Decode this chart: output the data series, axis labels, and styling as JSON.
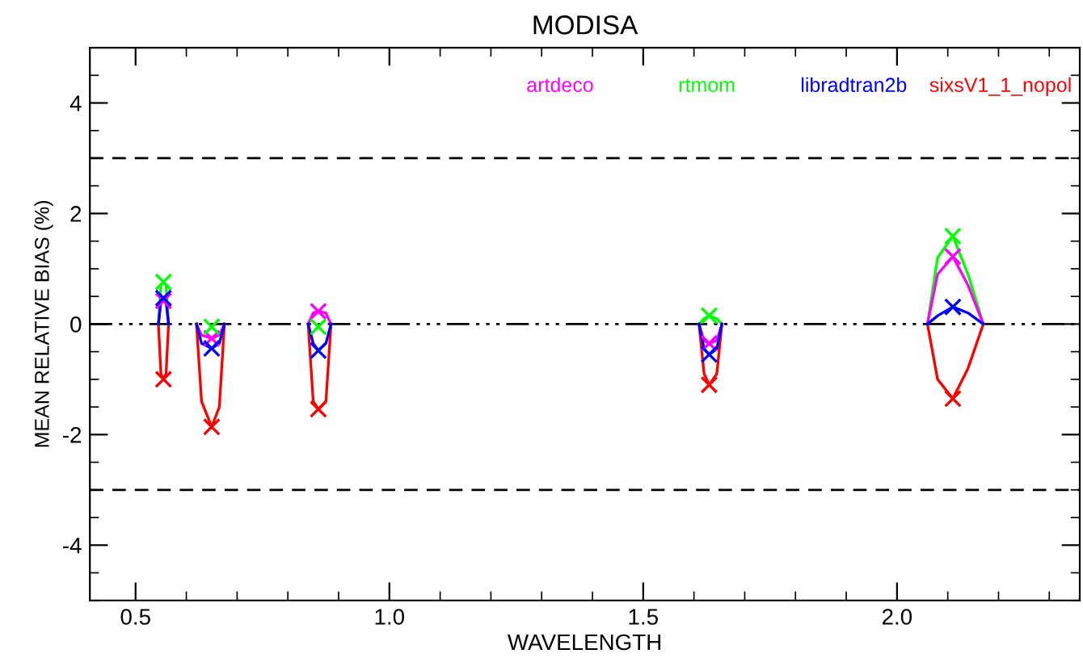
{
  "chart_data": {
    "type": "line",
    "title": "MODISA",
    "xlabel": "WAVELENGTH",
    "ylabel": "MEAN RELATIVE BIAS (%)",
    "xlim": [
      0.41,
      2.36
    ],
    "ylim": [
      -5,
      5
    ],
    "xticks": [
      0.5,
      {
        "value": 1,
        "label": "1.0"
      },
      1.5,
      {
        "value": 2,
        "label": "2.0"
      }
    ],
    "yticks": [
      -4,
      -2,
      0,
      2,
      4
    ],
    "grid": false,
    "legend": "top right",
    "marker": "none",
    "line_style": "solid",
    "ref_lines": [
      {
        "axis": "y",
        "value": 3,
        "label": null,
        "color": "#000000",
        "line_style": "dashed"
      },
      {
        "axis": "y",
        "value": -3,
        "label": null,
        "color": "#000000",
        "line_style": "dashed"
      },
      {
        "axis": "y",
        "value": 0,
        "label": null,
        "color": "#000000",
        "line_style": "dotted"
      }
    ],
    "x": [
      0.545,
      0.55,
      0.555,
      0.56,
      0.565,
      0.57,
      0.62,
      0.63,
      0.65,
      0.665,
      0.675,
      0.7,
      0.84,
      0.85,
      0.86,
      0.875,
      0.885,
      0.9,
      1.61,
      1.62,
      1.63,
      1.645,
      1.655,
      1.7,
      2.06,
      2.08,
      2.11,
      2.14,
      2.17
    ],
    "series": [
      {
        "name": "artdeco",
        "color": "#ff00ff",
        "values": [
          0,
          0.4,
          0.42,
          0.4,
          0,
          null,
          0,
          -0.2,
          -0.26,
          -0.2,
          0,
          null,
          0,
          0.2,
          0.23,
          0.2,
          0,
          null,
          0,
          -0.3,
          -0.35,
          -0.3,
          0,
          null,
          0,
          0.9,
          1.22,
          0.7,
          0
        ]
      },
      {
        "name": "rtmom",
        "color": "#00ff00",
        "values": [
          0,
          0.7,
          0.76,
          0.7,
          0,
          null,
          null,
          null,
          null,
          null,
          null,
          null,
          null,
          null,
          null,
          null,
          null,
          null,
          0,
          0.1,
          0.15,
          0.1,
          0,
          null,
          0,
          1.2,
          1.59,
          0.9,
          0
        ]
      },
      {
        "name": "libradtran2b",
        "color": "#0000ff",
        "values": [
          0,
          0.45,
          0.47,
          0.45,
          0,
          null,
          0,
          -0.35,
          -0.44,
          -0.35,
          0,
          null,
          0,
          -0.35,
          -0.48,
          -0.35,
          0,
          null,
          0,
          -0.45,
          -0.55,
          -0.45,
          0,
          null,
          0,
          0.15,
          0.31,
          0.2,
          0
        ]
      },
      {
        "name": "sixsV1_1_nopol",
        "color": "#ff0000",
        "values": [
          0,
          -0.9,
          -1.0,
          -0.9,
          0,
          null,
          0,
          -1.4,
          -1.86,
          -1.5,
          0,
          null,
          0,
          -1.4,
          -1.54,
          -1.4,
          0,
          null,
          0,
          -0.9,
          -1.1,
          -0.9,
          0,
          null,
          0,
          -1.0,
          -1.35,
          -0.8,
          0
        ]
      },
      {
        "type": "scatter",
        "marker": "cross",
        "color": "#ff00ff",
        "x": [
          0.555,
          0.65,
          0.86,
          1.63,
          2.11
        ],
        "values": [
          0.42,
          -0.26,
          0.23,
          -0.35,
          1.22
        ]
      },
      {
        "type": "scatter",
        "marker": "cross",
        "color": "#00ff00",
        "x": [
          0.555,
          0.65,
          0.86,
          1.63,
          2.11
        ],
        "values": [
          0.76,
          -0.05,
          -0.05,
          0.15,
          1.59
        ]
      },
      {
        "type": "scatter",
        "marker": "cross",
        "color": "#0000ff",
        "x": [
          0.555,
          0.65,
          0.86,
          1.63,
          2.11
        ],
        "values": [
          0.47,
          -0.44,
          -0.48,
          -0.55,
          0.31
        ]
      },
      {
        "type": "scatter",
        "marker": "cross",
        "color": "#ff0000",
        "x": [
          0.555,
          0.65,
          0.86,
          1.63,
          2.11
        ],
        "values": [
          -1.0,
          -1.86,
          -1.54,
          -1.1,
          -1.35
        ]
      }
    ]
  }
}
